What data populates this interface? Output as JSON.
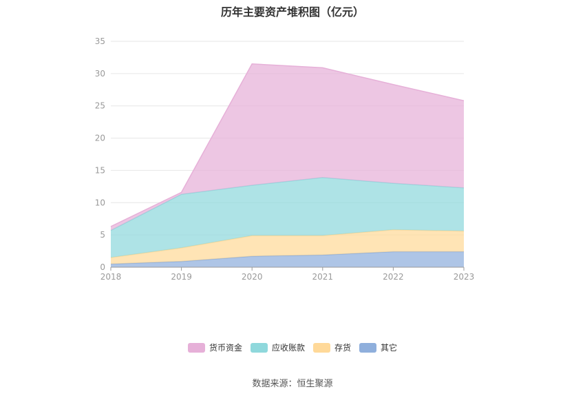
{
  "chart_data": {
    "type": "area",
    "stacked": true,
    "title": "历年主要资产堆积图（亿元）",
    "x": [
      "2018",
      "2019",
      "2020",
      "2021",
      "2022",
      "2023"
    ],
    "ylim": [
      0,
      35
    ],
    "yticks": [
      "0",
      "5",
      "10",
      "15",
      "20",
      "25",
      "30",
      "35"
    ],
    "grid": true,
    "legend_position": "bottom",
    "series": [
      {
        "name": "其它",
        "color": "#8fafdc",
        "values": [
          0.5,
          0.9,
          1.7,
          1.9,
          2.4,
          2.4
        ]
      },
      {
        "name": "存货",
        "color": "#ffd999",
        "values": [
          1.0,
          2.1,
          3.2,
          3.0,
          3.4,
          3.2
        ]
      },
      {
        "name": "应收账款",
        "color": "#8fd8dc",
        "values": [
          4.2,
          8.3,
          7.8,
          9.0,
          7.2,
          6.7
        ]
      },
      {
        "name": "货币资金",
        "color": "#e6b0d8",
        "values": [
          0.6,
          0.3,
          18.8,
          17.0,
          15.3,
          13.5
        ]
      }
    ]
  },
  "legend_order": [
    "货币资金",
    "应收账款",
    "存货",
    "其它"
  ],
  "source": "数据来源：恒生聚源"
}
